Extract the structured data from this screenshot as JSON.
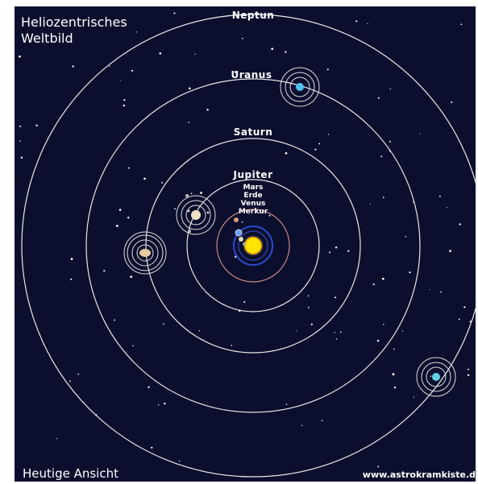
{
  "title": {
    "lines": [
      "Heliozentrisches",
      "Weltbild"
    ]
  },
  "planets": [
    {
      "label": "Neptun"
    },
    {
      "label": "Uranus"
    },
    {
      "label": "Saturn"
    },
    {
      "label": "Jupiter"
    },
    {
      "label": "Mars"
    },
    {
      "label": "Erde"
    },
    {
      "label": "Venus"
    },
    {
      "label": "Merkur"
    }
  ],
  "caption": "Heutige Ansicht",
  "source": "www.astrokramkiste.d"
}
